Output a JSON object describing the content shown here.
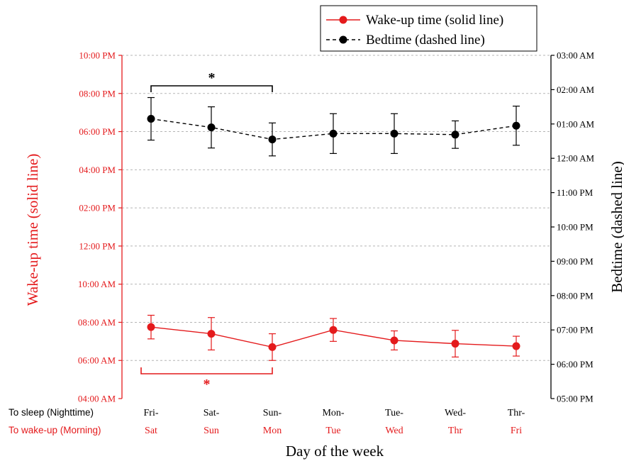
{
  "chart_data": {
    "type": "line",
    "xlabel": "Day of the week",
    "row_labels": {
      "sleep": "To sleep (Nighttime)",
      "wake": "To wake-up (Morning)"
    },
    "categories": [
      {
        "top": "Fri-",
        "bottom": "Sat"
      },
      {
        "top": "Sat-",
        "bottom": "Sun"
      },
      {
        "top": "Sun-",
        "bottom": "Mon"
      },
      {
        "top": "Mon-",
        "bottom": "Tue"
      },
      {
        "top": "Tue-",
        "bottom": "Wed"
      },
      {
        "top": "Wed-",
        "bottom": "Thr"
      },
      {
        "top": "Thr-",
        "bottom": "Fri"
      }
    ],
    "left_axis": {
      "label": "Wake-up time (solid line)",
      "color": "#e41a1c",
      "range_hours": [
        4,
        22
      ],
      "ticks": [
        {
          "h": 4,
          "label": "04:00 AM"
        },
        {
          "h": 6,
          "label": "06:00 AM"
        },
        {
          "h": 8,
          "label": "08:00 AM"
        },
        {
          "h": 10,
          "label": "10:00 AM"
        },
        {
          "h": 12,
          "label": "12:00 PM"
        },
        {
          "h": 14,
          "label": "02:00 PM"
        },
        {
          "h": 16,
          "label": "04:00 PM"
        },
        {
          "h": 18,
          "label": "06:00 PM"
        },
        {
          "h": 20,
          "label": "08:00 PM"
        },
        {
          "h": 22,
          "label": "10:00 PM"
        }
      ]
    },
    "right_axis": {
      "label": "Bedtime (dashed line)",
      "color": "#000000",
      "range_hours": [
        17,
        27
      ],
      "ticks": [
        {
          "h": 17,
          "label": "05:00 PM"
        },
        {
          "h": 18,
          "label": "06:00 PM"
        },
        {
          "h": 19,
          "label": "07:00 PM"
        },
        {
          "h": 20,
          "label": "08:00 PM"
        },
        {
          "h": 21,
          "label": "09:00 PM"
        },
        {
          "h": 22,
          "label": "10:00 PM"
        },
        {
          "h": 23,
          "label": "11:00 PM"
        },
        {
          "h": 24,
          "label": "12:00 AM"
        },
        {
          "h": 25,
          "label": "01:00 AM"
        },
        {
          "h": 26,
          "label": "02:00 AM"
        },
        {
          "h": 27,
          "label": "03:00 AM"
        }
      ]
    },
    "series": [
      {
        "name": "Wake-up time (solid line)",
        "axis": "left",
        "color": "#e41a1c",
        "line_style": "solid",
        "values_hours": [
          7.75,
          7.4,
          6.7,
          7.6,
          7.05,
          6.88,
          6.75
        ],
        "errors_hours": [
          0.62,
          0.85,
          0.7,
          0.6,
          0.5,
          0.7,
          0.52
        ]
      },
      {
        "name": "Bedtime (dashed line)",
        "axis": "right",
        "color": "#000000",
        "line_style": "dashed",
        "values_hours": [
          25.15,
          24.9,
          24.55,
          24.72,
          24.72,
          24.69,
          24.95
        ],
        "errors_hours": [
          0.62,
          0.6,
          0.48,
          0.58,
          0.58,
          0.4,
          0.57
        ]
      }
    ],
    "annotations": [
      {
        "text": "*",
        "series": "Bedtime (dashed line)",
        "from_category": 0,
        "to_category": 2,
        "color": "#000000"
      },
      {
        "text": "*",
        "series": "Wake-up time (solid line)",
        "from_category": 0,
        "to_category": 2,
        "color": "#e41a1c"
      }
    ],
    "grid": "horizontal dashed",
    "legend_position": "top-right"
  }
}
